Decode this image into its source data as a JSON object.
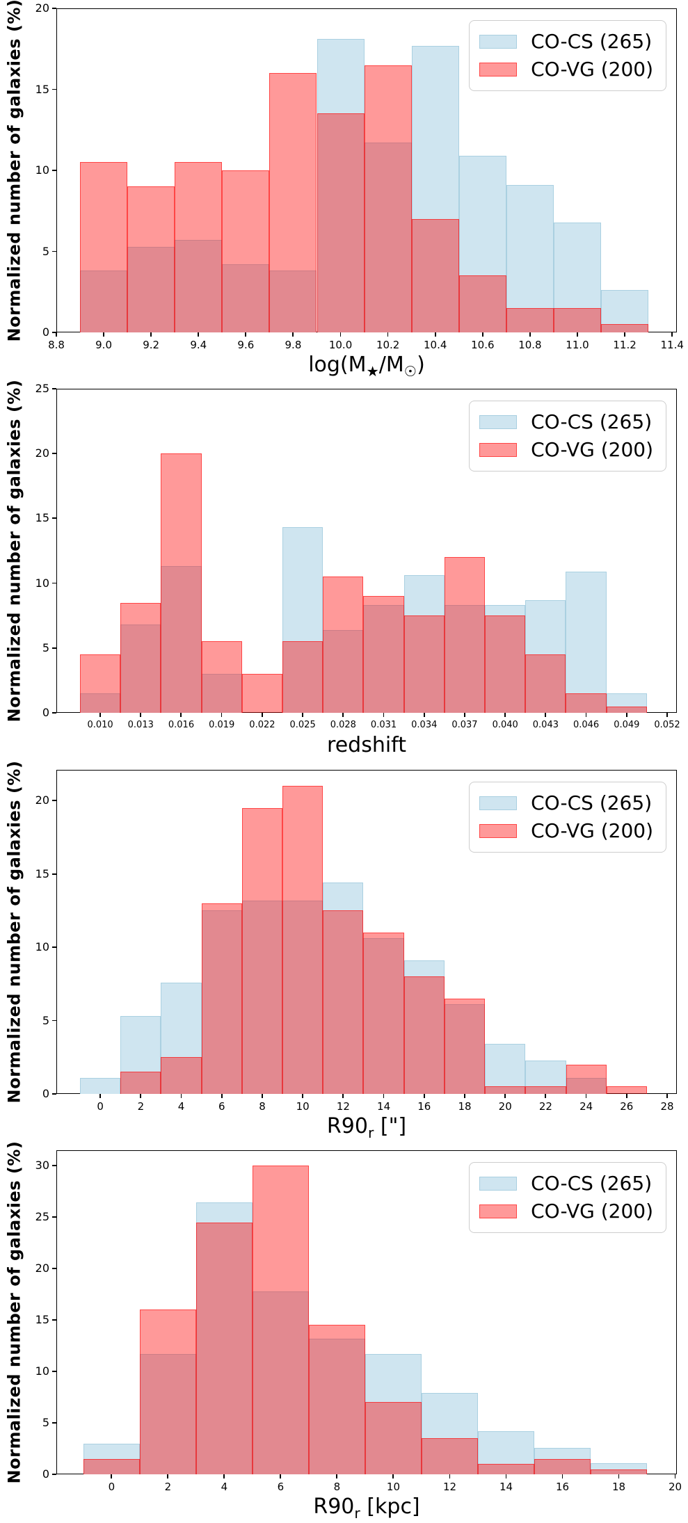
{
  "figure": {
    "ylabel": "Normalized number of galaxies (%)",
    "legend": {
      "entries": [
        {
          "label": "CO-CS (265)",
          "series": "co-cs",
          "fill": "#cfe5f0"
        },
        {
          "label": "CO-VG (200)",
          "series": "co-vg",
          "fill": "#ff9999"
        }
      ],
      "position": "upper-right"
    },
    "colors": {
      "co_cs_fill": "#cfe5f0",
      "co_vg_fill_rgba": "rgba(255,0,0,0.40)",
      "co_vg_edge": "rgba(255,0,0,0.55)",
      "overlap_seen": "#db8a90",
      "spine": "#000000"
    }
  },
  "chart_data": [
    {
      "type": "bar",
      "subtype": "overlaid-histogram",
      "title": "",
      "xlabel": "log(M★/M☉)",
      "xlabel_html": "log(M<sub>★</sub>/M<sub>☉</sub>)",
      "ylabel": "Normalized number of galaxies (%)",
      "xlim": [
        8.8,
        11.42
      ],
      "ylim": [
        0,
        20
      ],
      "grid": false,
      "legend_position": "upper-right",
      "xtick_values": [
        8.8,
        9.0,
        9.2,
        9.4,
        9.6,
        9.8,
        10.0,
        10.2,
        10.4,
        10.6,
        10.8,
        11.0,
        11.2,
        11.4
      ],
      "xtick_labels": [
        "8.8",
        "9.0",
        "9.2",
        "9.4",
        "9.6",
        "9.8",
        "10.0",
        "10.2",
        "10.4",
        "10.6",
        "10.8",
        "11.0",
        "11.2",
        "11.4"
      ],
      "ytick_values": [
        0,
        5,
        10,
        15,
        20
      ],
      "ytick_labels": [
        "0",
        "5",
        "10",
        "15",
        "20"
      ],
      "bin_start": 8.9,
      "bin_width": 0.2,
      "xtick_font": 15,
      "series": [
        {
          "name": "CO-CS (265)",
          "values": [
            3.8,
            5.3,
            5.7,
            4.2,
            3.8,
            18.1,
            11.7,
            17.7,
            10.9,
            9.1,
            6.8,
            2.6
          ]
        },
        {
          "name": "CO-VG (200)",
          "values": [
            10.5,
            9.0,
            10.5,
            10.0,
            16.0,
            13.5,
            16.5,
            7.0,
            3.5,
            1.5,
            1.5,
            0.5
          ]
        }
      ]
    },
    {
      "type": "bar",
      "subtype": "overlaid-histogram",
      "title": "",
      "xlabel": "redshift",
      "xlabel_html": "redshift",
      "ylabel": "Normalized number of galaxies (%)",
      "xlim": [
        0.00675,
        0.05272
      ],
      "ylim": [
        0,
        25
      ],
      "grid": false,
      "legend_position": "upper-right",
      "xtick_values": [
        0.01,
        0.013,
        0.016,
        0.019,
        0.022,
        0.025,
        0.028,
        0.031,
        0.034,
        0.037,
        0.04,
        0.043,
        0.046,
        0.049,
        0.052
      ],
      "xtick_labels": [
        "0.010",
        "0.013",
        "0.016",
        "0.019",
        "0.022",
        "0.025",
        "0.028",
        "0.031",
        "0.034",
        "0.037",
        "0.040",
        "0.043",
        "0.046",
        "0.049",
        "0.052"
      ],
      "ytick_values": [
        0,
        5,
        10,
        15,
        20,
        25
      ],
      "ytick_labels": [
        "0",
        "5",
        "10",
        "15",
        "20",
        "25"
      ],
      "bin_start": 0.0085,
      "bin_width": 0.003,
      "xtick_font": 13,
      "series": [
        {
          "name": "CO-CS (265)",
          "values": [
            1.5,
            6.8,
            11.3,
            3.0,
            0,
            14.3,
            6.4,
            8.3,
            10.6,
            8.3,
            8.3,
            8.7,
            10.9,
            1.5
          ]
        },
        {
          "name": "CO-VG (200)",
          "values": [
            4.5,
            8.5,
            20.0,
            5.5,
            3.0,
            5.5,
            10.5,
            9.0,
            7.5,
            12.0,
            7.5,
            4.5,
            1.5,
            0.5
          ]
        }
      ]
    },
    {
      "type": "bar",
      "subtype": "overlaid-histogram",
      "title": "",
      "xlabel": "R90r [\"]",
      "xlabel_html": "R90<sub>r</sub> [\"]",
      "ylabel": "Normalized number of galaxies (%)",
      "xlim": [
        -2.17,
        28.48
      ],
      "ylim": [
        0,
        22.1
      ],
      "grid": false,
      "legend_position": "upper-right",
      "xtick_values": [
        0,
        2,
        4,
        6,
        8,
        10,
        12,
        14,
        16,
        18,
        20,
        22,
        24,
        26,
        28
      ],
      "xtick_labels": [
        "0",
        "2",
        "4",
        "6",
        "8",
        "10",
        "12",
        "14",
        "16",
        "18",
        "20",
        "22",
        "24",
        "26",
        "28"
      ],
      "ytick_values": [
        0,
        5,
        10,
        15,
        20
      ],
      "ytick_labels": [
        "0",
        "5",
        "10",
        "15",
        "20"
      ],
      "bin_start": -1,
      "bin_width": 2,
      "xtick_font": 15,
      "series": [
        {
          "name": "CO-CS (265)",
          "values": [
            1.1,
            5.3,
            7.6,
            12.5,
            13.2,
            13.2,
            14.4,
            10.6,
            9.1,
            6.1,
            3.4,
            2.3,
            1.1,
            0
          ]
        },
        {
          "name": "CO-VG (200)",
          "values": [
            0,
            1.5,
            2.5,
            13.0,
            19.5,
            21.0,
            12.5,
            11.0,
            8.0,
            6.5,
            0.5,
            0.5,
            2.0,
            0.5
          ]
        }
      ]
    },
    {
      "type": "bar",
      "subtype": "overlaid-histogram",
      "title": "",
      "xlabel": "R90r [kpc]",
      "xlabel_html": "R90<sub>r</sub> [kpc]",
      "ylabel": "Normalized number of galaxies (%)",
      "xlim": [
        -1.96,
        20.06
      ],
      "ylim": [
        0,
        31.5
      ],
      "grid": false,
      "legend_position": "upper-right",
      "xtick_values": [
        0,
        2,
        4,
        6,
        8,
        10,
        12,
        14,
        16,
        18,
        20
      ],
      "xtick_labels": [
        "0",
        "2",
        "4",
        "6",
        "8",
        "10",
        "12",
        "14",
        "16",
        "18",
        "20"
      ],
      "ytick_values": [
        0,
        5,
        10,
        15,
        20,
        25,
        30
      ],
      "ytick_labels": [
        "0",
        "5",
        "10",
        "15",
        "20",
        "25",
        "30"
      ],
      "bin_start": -1,
      "bin_width": 2,
      "xtick_font": 15,
      "series": [
        {
          "name": "CO-CS (265)",
          "values": [
            3.0,
            11.7,
            26.4,
            17.8,
            13.2,
            11.7,
            7.9,
            4.2,
            2.6,
            1.1
          ]
        },
        {
          "name": "CO-VG (200)",
          "values": [
            1.5,
            16.0,
            24.5,
            30.0,
            14.5,
            7.0,
            3.5,
            1.0,
            1.5,
            0.5
          ]
        }
      ]
    }
  ]
}
